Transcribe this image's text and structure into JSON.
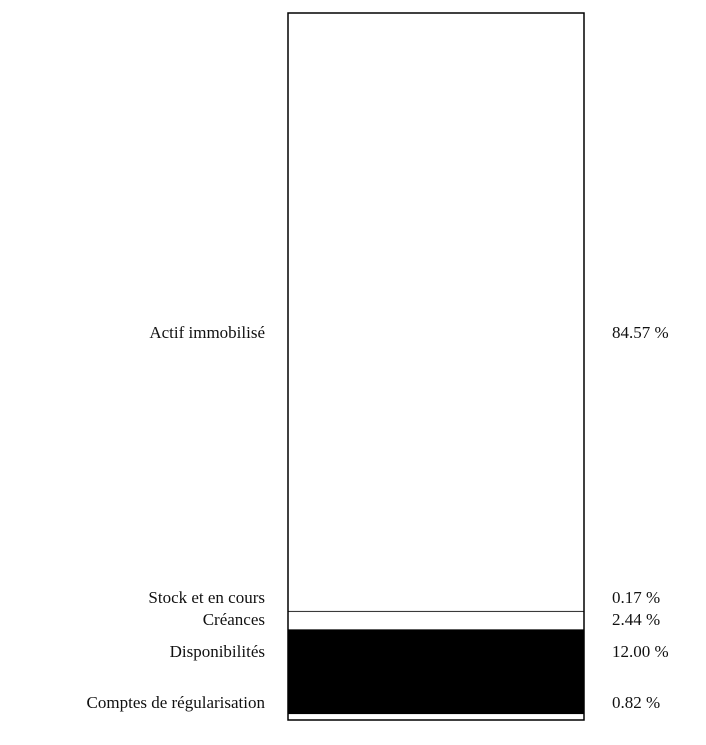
{
  "chart_data": {
    "type": "bar",
    "subtype": "stacked-column-100",
    "unit": "%",
    "segments": [
      {
        "label": "Actif immobilisé",
        "value": 84.57,
        "value_label": "84.57 %",
        "color": "#ffffff"
      },
      {
        "label": "Stock et en cours",
        "value": 0.17,
        "value_label": "0.17 %",
        "color": "#3a3a3a"
      },
      {
        "label": "Créances",
        "value": 2.44,
        "value_label": "2.44 %",
        "color": "#ffffff"
      },
      {
        "label": "Disponibilités",
        "value": 12.0,
        "value_label": "12.00 %",
        "color": "#000000"
      },
      {
        "label": "Comptes de régularisation",
        "value": 0.82,
        "value_label": "0.82 %",
        "color": "#ffffff"
      }
    ]
  }
}
